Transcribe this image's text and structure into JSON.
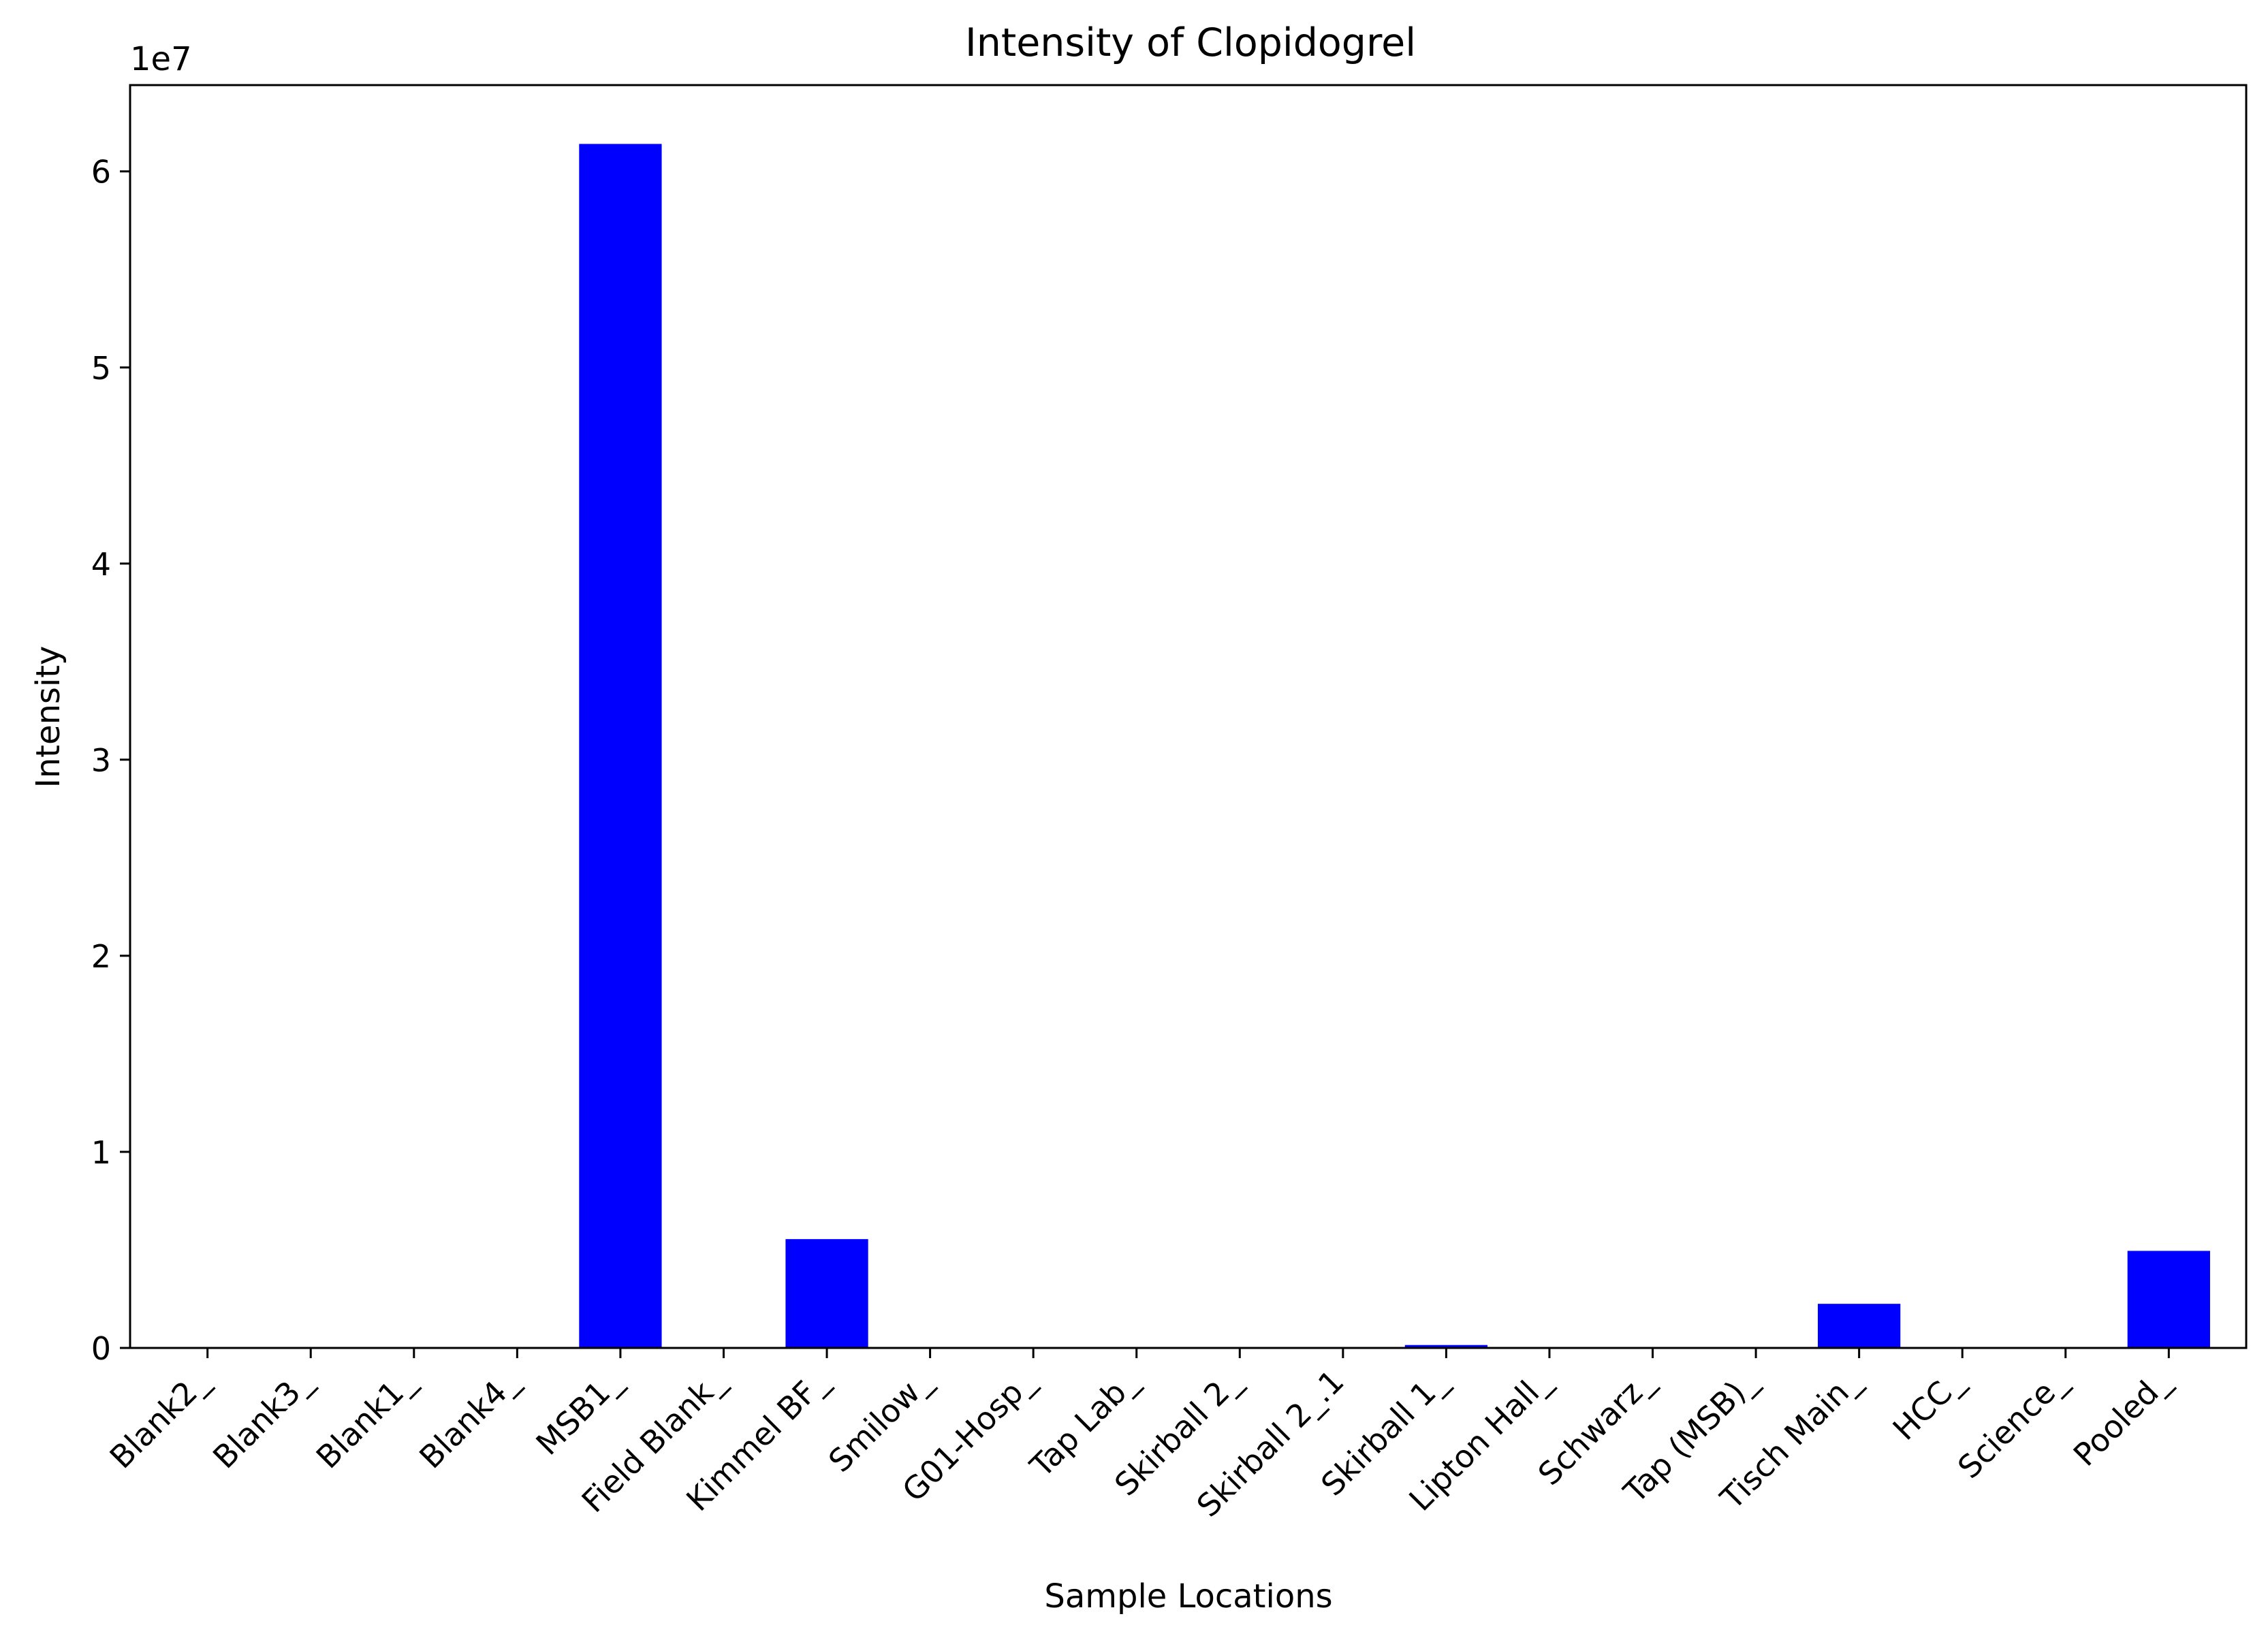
{
  "chart_data": {
    "type": "bar",
    "title": "Intensity of Clopidogrel",
    "xlabel": "Sample Locations",
    "ylabel": "Intensity",
    "y_offset_label": "1e7",
    "categories": [
      "Blank2_",
      "Blank3_",
      "Blank1_",
      "Blank4_",
      "MSB1_",
      "Field Blank_",
      "Kimmel BF_",
      "Smilow_",
      "G01-Hosp_",
      "Tap Lab_",
      "Skirball 2_",
      "Skirball 2_.1",
      "Skirball 1_",
      "Lipton Hall_",
      "Schwarz_",
      "Tap (MSB)_",
      "Tisch Main_",
      "HCC_",
      "Science_",
      "Pooled_"
    ],
    "values": [
      0,
      0,
      0,
      0,
      61400000,
      0,
      5550000,
      0,
      0,
      0,
      0,
      0,
      150000,
      0,
      0,
      0,
      2250000,
      0,
      0,
      4950000
    ],
    "ylim": [
      0,
      64400000
    ],
    "yticks": [
      0,
      10000000,
      20000000,
      30000000,
      40000000,
      50000000,
      60000000
    ],
    "ytick_labels": [
      "0",
      "1",
      "2",
      "3",
      "4",
      "5",
      "6"
    ],
    "bar_color": "#0000ff",
    "grid": false,
    "legend": "none"
  }
}
